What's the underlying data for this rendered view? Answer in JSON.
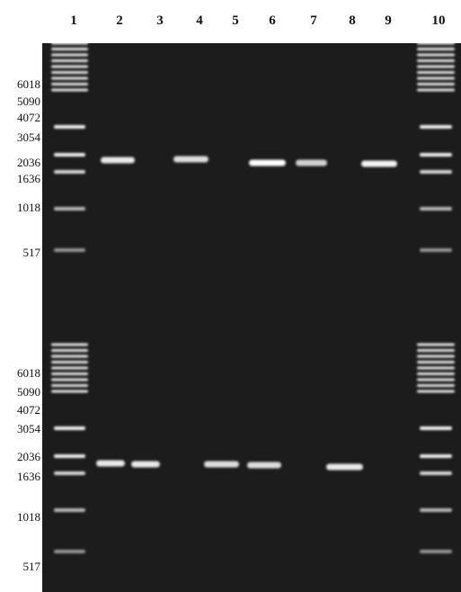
{
  "lanes": [
    "1",
    "2",
    "3",
    "4",
    "5",
    "6",
    "7",
    "8",
    "9",
    "10"
  ],
  "top_markers": [
    "6018",
    "5090",
    "4072",
    "3054",
    "2036",
    "1636",
    "1018",
    "517"
  ],
  "bottom_markers": [
    "6018",
    "5090",
    "4072",
    "3054",
    "2036",
    "1636",
    "1018",
    "517"
  ]
}
